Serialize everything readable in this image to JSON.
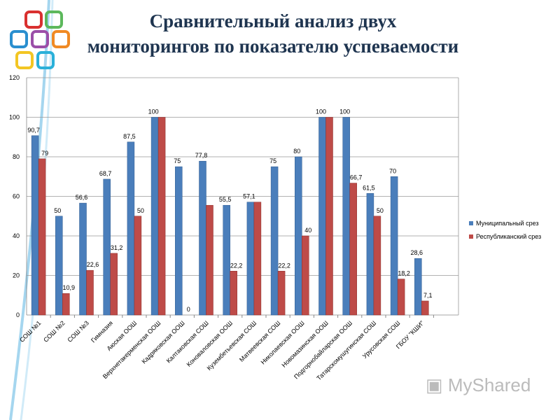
{
  "title": [
    "Сравнительный анализ двух",
    "мониторингов по показателю успеваемости"
  ],
  "watermark": "MyShared",
  "chart_data": {
    "type": "bar",
    "title": "Сравнительный анализ двух мониторингов по показателю успеваемости",
    "categories": [
      "СОШ №1",
      "СОШ №2",
      "СОШ №3",
      "Гимназия",
      "Аюская ООШ",
      "Верхнетакерменская ООШ",
      "Кадряковская ООШ",
      "Калтаковская СОШ",
      "Коноваловская ООШ",
      "Кузембетьевская СОШ",
      "Матвеевская СОШ",
      "Николаевская ООШ",
      "Новомазинская ООШ",
      "Подгорнобайларская ООШ",
      "Татарскомушугинская СОШ",
      "Урусовская СОШ",
      "ГБОУ \"КШИ\""
    ],
    "series": [
      {
        "name": "Муниципальный срез",
        "color": "#4a7ebb",
        "values": [
          90.7,
          50,
          56.6,
          68.7,
          87.5,
          100,
          75,
          77.8,
          55.5,
          57.1,
          75,
          80,
          100,
          100,
          61.5,
          70,
          28.6
        ],
        "labels": [
          "90,7",
          "50",
          "56,6",
          "68,7",
          "87,5",
          "100",
          "75",
          "77,8",
          "55,5",
          "57,1",
          "75",
          "80",
          "100",
          "100",
          "61,5",
          "70",
          "28,6"
        ]
      },
      {
        "name": "Республиканский срез",
        "color": "#be4b48",
        "values": [
          79,
          10.9,
          22.6,
          31.2,
          50,
          100,
          0,
          55.5,
          22.2,
          57.1,
          22.2,
          40,
          100,
          66.7,
          50,
          18.2,
          7.1
        ],
        "labels": [
          "79",
          "10,9",
          "22,6",
          "31,2",
          "50",
          "",
          "0",
          "",
          "22,2",
          "",
          "22,2",
          "40",
          "",
          "66,7",
          "50",
          "18,2",
          "7,1"
        ]
      }
    ],
    "ylim": [
      0,
      120
    ],
    "yticks": [
      "0",
      "20",
      "40",
      "60",
      "80",
      "100",
      "120"
    ],
    "grid": true,
    "legend": "right"
  }
}
